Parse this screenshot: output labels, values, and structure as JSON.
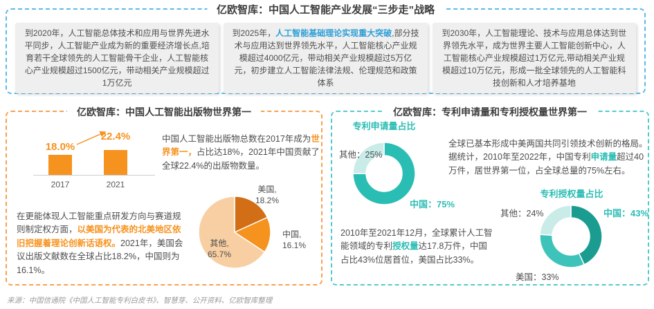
{
  "colors": {
    "blue_accent": "#5ABAE7",
    "blue_highlight": "#2E9FD6",
    "orange_accent": "#F6921E",
    "orange_dashed_border": "#F7A14E",
    "teal_dashed_border": "#53CACC",
    "teal_accent": "#2ABDB4",
    "teal_dark": "#1B9C90",
    "teal_light": "#C9ECE9",
    "orange_dark": "#D26E15",
    "orange_light": "#F8CFA2"
  },
  "top_section": {
    "title": "亿欧智库：中国人工智能产业发展“三步走”战略",
    "boxes": [
      {
        "part1": "到2020年，人工智能总体技术和应用与世界先进水平同步，人工智能产业成为新的重要经济增长点,培育若干全球领先的人工智能骨干企业，人工智能核心产业规模超过1500亿元，带动相关产业规模超过1万亿元",
        "highlight": "",
        "part2": ""
      },
      {
        "part1": "到2025年，",
        "highlight": "人工智能基础理论实现重大突破",
        "part2": ",部分技术与应用达到世界领先水平，人工智能核心产业规模超过4000亿元，带动相关产业规模超过5万亿元，初步建立人工智能法律法规、伦理规范和政策体系"
      },
      {
        "part1": "到2030年，人工智能理论、技术与应用总体达到世界领先水平，成为世界主要人工智能创新中心，人工智能核心产业规模超过1万亿元,带动相关产业规模超过10万亿元，形成一批全球领先的人工智能科技创新和人才培养基地",
        "highlight": "",
        "part2": ""
      }
    ]
  },
  "publications_section": {
    "title": "亿欧智库：中国人工智能出版物世界第一",
    "intro": {
      "part1": "中国人工智能出版物总数在2017年成为",
      "highlight": "世界第一，",
      "part2": "占比达18%，2021年中国贡献了全球22.4%的出版物数量。"
    },
    "detail": {
      "part1": "在更能体现人工智能重点研发方向与赛道规则制定权方面，",
      "highlight": "以美国为代表的北美地区依旧把握着理论创新话语权。",
      "part2": "2021年，美国会议出版文献数在全球占比18.2%，中国则为16.1%。"
    }
  },
  "patents_section": {
    "title": "亿欧智库：专利申请量和专利授权量世界第一",
    "applications_text": {
      "part1": "全球已基本形成中美两国共同引领技术创新的格局。据统计，2010年至2022年，中国专利",
      "highlight": "申请量",
      "part2": "超过40万件，居世界第一位，占全球总量的75%左右。"
    },
    "grants_text": {
      "part1": "2010年至2021年12月，全球累计人工智能领域的专利",
      "highlight": "授权量",
      "part2": "达17.8万件，中国占比43%位居首位，美国占比33%。"
    }
  },
  "footer": {
    "source": "来源：中国信通院《中国人工智能专利白皮书》、智慧芽、公开资料、亿欧智库整理"
  },
  "chart_data": [
    {
      "type": "bar",
      "categories": [
        "2017",
        "2021"
      ],
      "values": [
        18.0,
        22.4
      ],
      "value_labels": [
        "18.0%",
        "22.4%"
      ],
      "bar_color": "#F6921E",
      "xlabel": "",
      "ylabel": "",
      "ylim": [
        0,
        25
      ]
    },
    {
      "type": "pie",
      "labels": [
        "美国",
        "中国",
        "其他"
      ],
      "values": [
        18.2,
        16.1,
        65.7
      ],
      "slice_labels": [
        "美国,\n18.2%",
        "中国,\n16.1%",
        "其他,\n65.7%"
      ],
      "colors": [
        "#D26E15",
        "#F6921E",
        "#F8CFA2"
      ]
    },
    {
      "type": "donut",
      "title": "专利申请量占比",
      "labels": [
        "中国",
        "其他"
      ],
      "values": [
        75,
        25
      ],
      "slice_labels": [
        "中国：75%",
        "其他：25%"
      ],
      "colors": [
        "#2ABDB4",
        "#C9ECE9"
      ]
    },
    {
      "type": "donut",
      "title": "专利授权量占比",
      "labels": [
        "中国",
        "美国",
        "其他"
      ],
      "values": [
        43,
        33,
        24
      ],
      "slice_labels": [
        "中国：43%",
        "美国：33%",
        "其他：24%"
      ],
      "colors": [
        "#1B9C90",
        "#3EC3BA",
        "#C9ECE9"
      ]
    }
  ]
}
